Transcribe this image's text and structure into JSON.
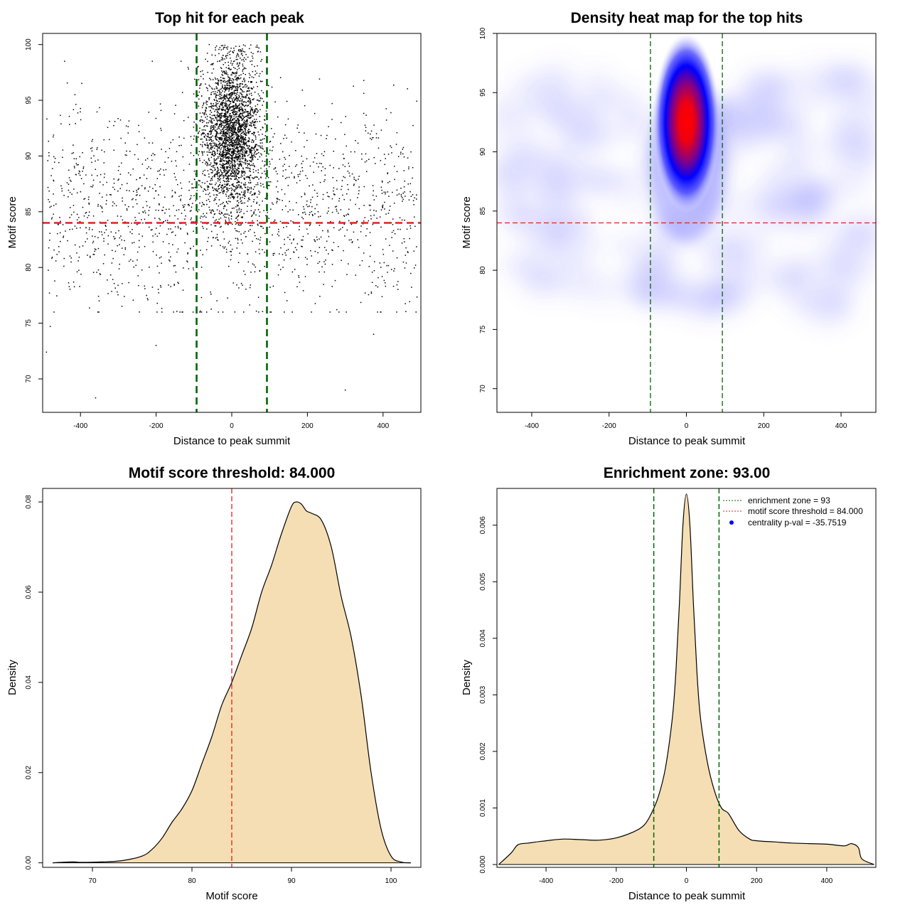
{
  "colors": {
    "zone_line": "#006400",
    "threshold_line": "#e0201b",
    "density_fill": "#f5deb3",
    "points": "#000000",
    "legend_point": "#0000ff"
  },
  "chart_data": [
    {
      "type": "scatter",
      "title": "Top hit for each peak",
      "xlabel": "Distance to peak summit",
      "ylabel": "Motif score",
      "xlim": [
        -500,
        500
      ],
      "ylim": [
        67,
        101
      ],
      "xticks": [
        -400,
        -200,
        0,
        200,
        400
      ],
      "yticks": [
        70,
        75,
        80,
        85,
        90,
        95,
        100
      ],
      "zone_lines_x": [
        -93,
        93
      ],
      "threshold_y": 84,
      "point_cloud": {
        "background": {
          "count": 1500,
          "x_range": [
            -490,
            490
          ],
          "y_mean": 85.5,
          "y_sd": 4.5
        },
        "central": {
          "count": 2800,
          "x_mean": 0,
          "x_sd": 38,
          "y_mean": 92,
          "y_sd": 3.5
        },
        "outliers": [
          [
            -490,
            72.4
          ],
          [
            -480,
            74.7
          ],
          [
            -360,
            68.3
          ],
          [
            -200,
            73
          ],
          [
            300,
            69
          ],
          [
            375,
            74
          ],
          [
            -80,
            77.3
          ]
        ]
      }
    },
    {
      "type": "heatmap",
      "title": "Density heat map for the top hits",
      "xlabel": "Distance to peak summit",
      "ylabel": "Motif score",
      "xlim": [
        -490,
        490
      ],
      "ylim": [
        68,
        100
      ],
      "xticks": [
        -400,
        -200,
        0,
        200,
        400
      ],
      "yticks": [
        70,
        75,
        80,
        85,
        90,
        95,
        100
      ],
      "zone_lines_x": [
        -93,
        93
      ],
      "threshold_y": 84,
      "hotspot": {
        "x": 0,
        "y": 93
      }
    },
    {
      "type": "area",
      "title": "Motif score threshold: 84.000",
      "xlabel": "Motif score",
      "ylabel": "Density",
      "xlim": [
        65,
        103
      ],
      "ylim": [
        -0.001,
        0.083
      ],
      "xticks": [
        70,
        80,
        90,
        100
      ],
      "yticks": [
        0.0,
        0.02,
        0.04,
        0.06,
        0.08
      ],
      "ytick_labels": [
        "0.00",
        "0.02",
        "0.04",
        "0.06",
        "0.08"
      ],
      "threshold_x": 84,
      "x": [
        66,
        68,
        69,
        71,
        73,
        75,
        76,
        77,
        78,
        79,
        80,
        81,
        82,
        83,
        84,
        85,
        86,
        87,
        88,
        89,
        90,
        90.5,
        91,
        91.5,
        92,
        93,
        94,
        95,
        96,
        97,
        98,
        99,
        100,
        101,
        102
      ],
      "y": [
        0.0,
        0.0002,
        0.0001,
        0.0002,
        0.0005,
        0.0015,
        0.003,
        0.0055,
        0.009,
        0.012,
        0.016,
        0.022,
        0.028,
        0.035,
        0.04,
        0.046,
        0.052,
        0.06,
        0.066,
        0.073,
        0.079,
        0.08,
        0.0795,
        0.078,
        0.0775,
        0.076,
        0.07,
        0.059,
        0.05,
        0.037,
        0.02,
        0.0075,
        0.0015,
        0.0002,
        0.0
      ]
    },
    {
      "type": "area",
      "title": "Enrichment zone: 93.00",
      "xlabel": "Distance to peak summit",
      "ylabel": "Density",
      "xlim": [
        -540,
        540
      ],
      "ylim": [
        -5e-05,
        0.00665
      ],
      "xticks": [
        -400,
        -200,
        0,
        200,
        400
      ],
      "yticks": [
        0.0,
        0.001,
        0.002,
        0.003,
        0.004,
        0.005,
        0.006
      ],
      "ytick_labels": [
        "0.000",
        "0.001",
        "0.002",
        "0.003",
        "0.004",
        "0.005",
        "0.006"
      ],
      "zone_lines_x": [
        -93,
        93
      ],
      "x": [
        -535,
        -500,
        -480,
        -450,
        -400,
        -350,
        -300,
        -250,
        -200,
        -150,
        -120,
        -100,
        -80,
        -60,
        -40,
        -30,
        -20,
        -10,
        0,
        10,
        20,
        30,
        40,
        60,
        80,
        100,
        120,
        150,
        180,
        200,
        250,
        300,
        350,
        400,
        450,
        470,
        490,
        500,
        535
      ],
      "y": [
        0.0,
        0.0002,
        0.00035,
        0.00038,
        0.00042,
        0.00045,
        0.00044,
        0.00043,
        0.00047,
        0.00058,
        0.0007,
        0.0009,
        0.0012,
        0.0017,
        0.0026,
        0.0034,
        0.0046,
        0.006,
        0.00655,
        0.006,
        0.0046,
        0.0034,
        0.0026,
        0.0018,
        0.0013,
        0.001,
        0.0009,
        0.0006,
        0.00045,
        0.00042,
        0.0004,
        0.00038,
        0.00037,
        0.00036,
        0.00033,
        0.00037,
        0.0003,
        0.0001,
        0.0
      ],
      "legend": [
        {
          "label": "enrichment zone = 93",
          "kind": "line",
          "color_key": "zone_line"
        },
        {
          "label": "motif score threshold = 84.000",
          "kind": "line",
          "color_key": "threshold_line"
        },
        {
          "label": "centrality p-val = -35.7519",
          "kind": "point",
          "color_key": "legend_point"
        }
      ],
      "legend_position": "top-right"
    }
  ]
}
